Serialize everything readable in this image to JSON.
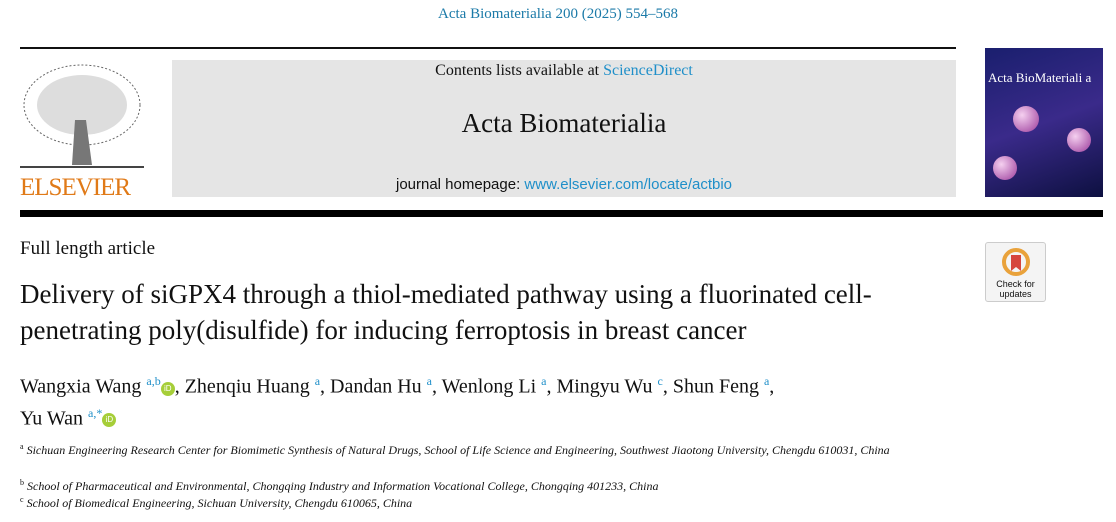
{
  "journal_ref": "Acta Biomaterialia 200 (2025) 554–568",
  "header": {
    "contents_prefix": "Contents lists available at ",
    "contents_link": "ScienceDirect",
    "journal_name": "Acta Biomaterialia",
    "homepage_prefix": "journal homepage: ",
    "homepage_link": "www.elsevier.com/locate/actbio"
  },
  "publisher_logo": "ELSEVIER",
  "cover_title": "Acta BioMateriali a",
  "article_type": "Full length article",
  "title": "Delivery of siGPX4 through a thiol-mediated pathway using a fluorinated cell-penetrating poly(disulfide) for inducing ferroptosis in breast cancer",
  "authors": [
    {
      "name": "Wangxia Wang",
      "aff": "a,b",
      "orcid": true
    },
    {
      "name": "Zhenqiu Huang",
      "aff": "a"
    },
    {
      "name": "Dandan Hu",
      "aff": "a"
    },
    {
      "name": "Wenlong Li",
      "aff": "a"
    },
    {
      "name": "Mingyu Wu",
      "aff": "c"
    },
    {
      "name": "Shun Feng",
      "aff": "a"
    },
    {
      "name": "Yu Wan",
      "aff": "a,*",
      "orcid": true
    }
  ],
  "affiliations": [
    {
      "key": "a",
      "text": "Sichuan Engineering Research Center for Biomimetic Synthesis of Natural Drugs, School of Life Science and Engineering, Southwest Jiaotong University, Chengdu 610031, China"
    },
    {
      "key": "b",
      "text": "School of Pharmaceutical and Environmental, Chongqing Industry and Information Vocational College, Chongqing 401233, China"
    },
    {
      "key": "c",
      "text": "School of Biomedical Engineering, Sichuan University, Chengdu 610065, China"
    }
  ],
  "check_updates": {
    "line1": "Check for",
    "line2": "updates"
  },
  "orcid_label": "iD"
}
